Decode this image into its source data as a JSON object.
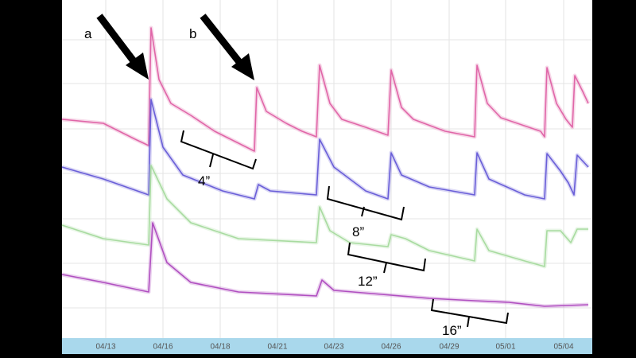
{
  "chart_data": {
    "type": "line",
    "xlim": [
      0,
      667
    ],
    "ylim": [
      0,
      425
    ],
    "xticks": [
      {
        "value": 55,
        "label": "04/13"
      },
      {
        "value": 127,
        "label": "04/16"
      },
      {
        "value": 199,
        "label": "04/18"
      },
      {
        "value": 271,
        "label": "04/21"
      },
      {
        "value": 342,
        "label": "04/23"
      },
      {
        "value": 414,
        "label": "04/26"
      },
      {
        "value": 487,
        "label": "04/29"
      },
      {
        "value": 558,
        "label": "05/01"
      },
      {
        "value": 631,
        "label": "05/04"
      }
    ],
    "grid": true,
    "annotations": [
      "a",
      "b",
      "4”",
      "8”",
      "12”",
      "16”"
    ],
    "series": [
      {
        "color": "#e066a8",
        "x": [
          0,
          52,
          92,
          109,
          112,
          122,
          137,
          162,
          192,
          222,
          242,
          245,
          257,
          282,
          302,
          320,
          324,
          337,
          352,
          382,
          410,
          414,
          427,
          442,
          482,
          519,
          522,
          535,
          552,
          602,
          607,
          610,
          622,
          634,
          642,
          645,
          655,
          662
        ],
        "values": [
          275,
          270,
          250,
          242,
          390,
          325,
          295,
          280,
          260,
          245,
          235,
          315,
          285,
          270,
          260,
          253,
          343,
          295,
          275,
          265,
          255,
          337,
          290,
          275,
          260,
          253,
          343,
          295,
          277,
          260,
          253,
          340,
          295,
          275,
          265,
          330,
          310,
          295
        ]
      },
      {
        "color": "#6a5fd8",
        "x": [
          0,
          52,
          109,
          112,
          127,
          152,
          202,
          242,
          247,
          262,
          320,
          324,
          342,
          382,
          410,
          414,
          427,
          462,
          519,
          522,
          537,
          582,
          607,
          610,
          627,
          637,
          644,
          648,
          662
        ],
        "values": [
          215,
          200,
          180,
          300,
          240,
          205,
          185,
          175,
          193,
          185,
          180,
          250,
          215,
          185,
          175,
          233,
          205,
          190,
          180,
          233,
          200,
          180,
          175,
          232,
          210,
          195,
          180,
          230,
          215
        ]
      },
      {
        "color": "#a8dba0",
        "x": [
          0,
          52,
          109,
          112,
          132,
          162,
          222,
          320,
          324,
          337,
          362,
          410,
          414,
          432,
          462,
          519,
          522,
          537,
          582,
          607,
          610,
          627,
          640,
          648,
          662
        ],
        "values": [
          142,
          125,
          117,
          217,
          175,
          145,
          125,
          120,
          165,
          135,
          120,
          115,
          130,
          125,
          110,
          97,
          137,
          110,
          97,
          90,
          135,
          135,
          120,
          137,
          137
        ]
      },
      {
        "color": "#b04fc0",
        "x": [
          0,
          52,
          109,
          114,
          132,
          162,
          222,
          320,
          327,
          342,
          402,
          462,
          519,
          562,
          607,
          662
        ],
        "values": [
          80,
          70,
          58,
          145,
          95,
          70,
          58,
          53,
          73,
          60,
          55,
          50,
          47,
          45,
          40,
          42
        ]
      }
    ]
  }
}
